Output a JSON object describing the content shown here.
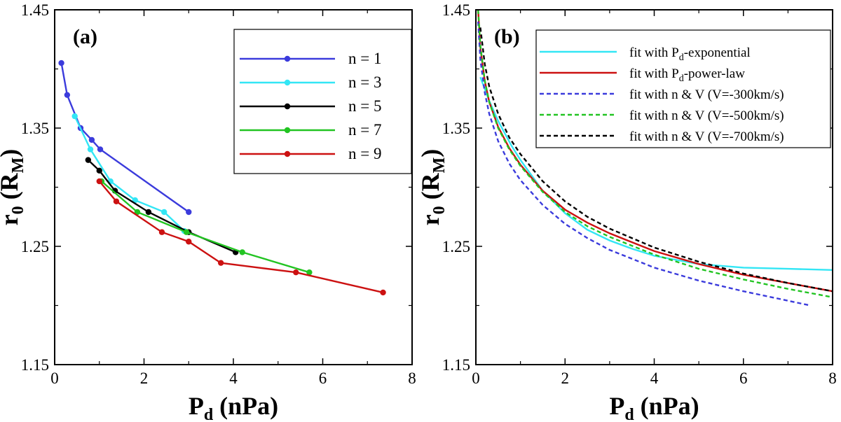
{
  "chart_data": [
    {
      "type": "line",
      "panel_label": "(a)",
      "xlabel": {
        "main": "P",
        "sub": "d",
        "suffix": " (nPa)"
      },
      "ylabel": {
        "main": "r",
        "sub": "0",
        "mid": " (R",
        "sub2": "M",
        "suffix": ")"
      },
      "xlim": [
        0,
        8
      ],
      "ylim": [
        1.15,
        1.45
      ],
      "xticks": [
        0,
        2,
        4,
        6,
        8
      ],
      "yticks": [
        1.15,
        1.25,
        1.35,
        1.45
      ],
      "xticklabels": [
        "0",
        "2",
        "4",
        "6",
        "8"
      ],
      "yticklabels": [
        "1.15",
        "1.25",
        "1.35",
        "1.45"
      ],
      "legend": "top-right",
      "series": [
        {
          "name": "n = 1",
          "color": "#3b3bdc",
          "x": [
            0.15,
            0.28,
            0.58,
            0.83,
            1.02,
            3.0
          ],
          "y": [
            1.405,
            1.378,
            1.35,
            1.34,
            1.332,
            1.279
          ]
        },
        {
          "name": "n = 3",
          "color": "#33e6f5",
          "x": [
            0.45,
            0.8,
            1.25,
            1.8,
            2.45,
            2.9
          ],
          "y": [
            1.36,
            1.332,
            1.305,
            1.289,
            1.279,
            1.263
          ]
        },
        {
          "name": "n = 5",
          "color": "#000000",
          "x": [
            0.75,
            1.0,
            1.35,
            2.1,
            3.0,
            4.05
          ],
          "y": [
            1.323,
            1.314,
            1.297,
            1.279,
            1.262,
            1.245
          ]
        },
        {
          "name": "n = 7",
          "color": "#22c422",
          "x": [
            1.05,
            1.85,
            2.95,
            4.2,
            5.7
          ],
          "y": [
            1.305,
            1.279,
            1.262,
            1.245,
            1.228
          ]
        },
        {
          "name": "n = 9",
          "color": "#cc1111",
          "x": [
            1.0,
            1.38,
            2.4,
            3.0,
            3.72,
            5.4,
            7.35
          ],
          "y": [
            1.305,
            1.288,
            1.262,
            1.254,
            1.236,
            1.228,
            1.211
          ]
        }
      ]
    },
    {
      "type": "line",
      "panel_label": "(b)",
      "xlabel": {
        "main": "P",
        "sub": "d",
        "suffix": " (nPa)"
      },
      "ylabel": {
        "main": "r",
        "sub": "0",
        "mid": " (R",
        "sub2": "M",
        "suffix": ")"
      },
      "xlim": [
        0,
        8
      ],
      "ylim": [
        1.15,
        1.45
      ],
      "xticks": [
        0,
        2,
        4,
        6,
        8
      ],
      "yticks": [
        1.15,
        1.25,
        1.35,
        1.45
      ],
      "xticklabels": [
        "0",
        "2",
        "4",
        "6",
        "8"
      ],
      "yticklabels": [
        "1.15",
        "1.25",
        "1.35",
        "1.45"
      ],
      "legend": "top-right",
      "series": [
        {
          "name": "fit with P_d-exponential",
          "label_pre": "fit with P",
          "label_sub": "d",
          "label_post": "-exponential",
          "color": "#33e6f5",
          "dash": false,
          "x": [
            0.1,
            0.3,
            0.5,
            0.8,
            1.0,
            1.5,
            2.0,
            2.5,
            3.0,
            3.5,
            4.0,
            5.0,
            6.0,
            7.0,
            8.0
          ],
          "y": [
            1.393,
            1.373,
            1.356,
            1.335,
            1.323,
            1.297,
            1.278,
            1.264,
            1.255,
            1.248,
            1.242,
            1.235,
            1.232,
            1.231,
            1.23
          ]
        },
        {
          "name": "fit with P_d-power-law",
          "label_pre": "fit with P",
          "label_sub": "d",
          "label_post": "-power-law",
          "color": "#cc1111",
          "dash": false,
          "x": [
            0.05,
            0.1,
            0.2,
            0.3,
            0.5,
            0.75,
            1.0,
            1.5,
            2.0,
            2.5,
            3.0,
            4.0,
            5.0,
            6.0,
            7.0,
            8.0
          ],
          "y": [
            1.45,
            1.418,
            1.39,
            1.372,
            1.351,
            1.333,
            1.319,
            1.297,
            1.281,
            1.27,
            1.261,
            1.246,
            1.235,
            1.226,
            1.219,
            1.212
          ]
        },
        {
          "name": "fit with n & V (V=-300km/s)",
          "label_pre": "fit with n & V (V=-300km/s)",
          "label_sub": "",
          "label_post": "",
          "color": "#3b3bdc",
          "dash": true,
          "x": [
            0.05,
            0.1,
            0.2,
            0.3,
            0.5,
            0.75,
            1.0,
            1.5,
            2.0,
            2.5,
            3.0,
            4.0,
            5.0,
            6.0,
            7.0,
            7.5
          ],
          "y": [
            1.44,
            1.408,
            1.38,
            1.362,
            1.339,
            1.32,
            1.306,
            1.285,
            1.269,
            1.257,
            1.247,
            1.232,
            1.221,
            1.212,
            1.204,
            1.2
          ]
        },
        {
          "name": "fit with n & V (V=-500km/s)",
          "label_pre": "fit with n & V (V=-500km/s)",
          "label_sub": "",
          "label_post": "",
          "color": "#22c422",
          "dash": true,
          "x": [
            0.05,
            0.1,
            0.2,
            0.3,
            0.5,
            0.75,
            1.0,
            1.5,
            2.0,
            2.5,
            3.0,
            4.0,
            5.0,
            6.0,
            7.0,
            8.0
          ],
          "y": [
            1.45,
            1.42,
            1.39,
            1.372,
            1.35,
            1.332,
            1.318,
            1.296,
            1.279,
            1.267,
            1.258,
            1.243,
            1.231,
            1.222,
            1.214,
            1.207
          ]
        },
        {
          "name": "fit with n & V (V=-700km/s)",
          "label_pre": "fit with n & V (V=-700km/s)",
          "label_sub": "",
          "label_post": "",
          "color": "#000000",
          "dash": true,
          "x": [
            0.1,
            0.2,
            0.3,
            0.5,
            0.75,
            1.0,
            1.5,
            2.0,
            2.5,
            3.0,
            4.0,
            5.0,
            6.0,
            7.0,
            8.0
          ],
          "y": [
            1.435,
            1.404,
            1.385,
            1.362,
            1.342,
            1.328,
            1.305,
            1.288,
            1.275,
            1.265,
            1.249,
            1.237,
            1.227,
            1.219,
            1.212
          ]
        }
      ]
    }
  ]
}
